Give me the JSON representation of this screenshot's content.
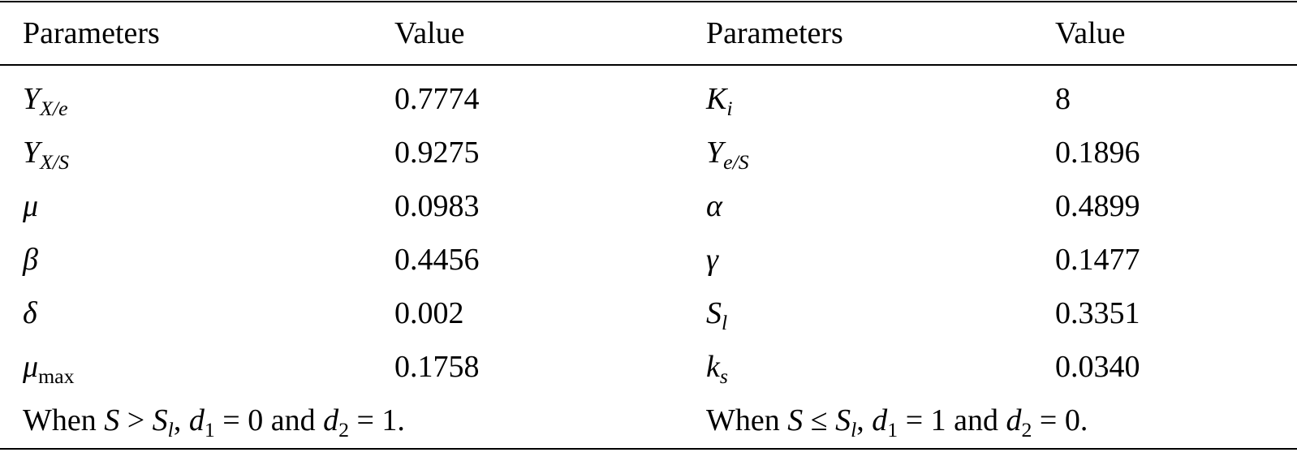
{
  "table": {
    "header": [
      "Parameters",
      "Value",
      "Parameters",
      "Value"
    ],
    "rows": [
      [
        [
          {
            "text": "Y",
            "style": "italic"
          },
          {
            "text": "X/e",
            "style": "italic-sub"
          }
        ],
        "0.7774",
        [
          {
            "text": "K",
            "style": "italic"
          },
          {
            "text": "i",
            "style": "italic-sub"
          }
        ],
        "8"
      ],
      [
        [
          {
            "text": "Y",
            "style": "italic"
          },
          {
            "text": "X/S",
            "style": "italic-sub"
          }
        ],
        "0.9275",
        [
          {
            "text": "Y",
            "style": "italic"
          },
          {
            "text": "e/S",
            "style": "italic-sub"
          }
        ],
        "0.1896"
      ],
      [
        [
          {
            "text": "μ",
            "style": "italic"
          }
        ],
        "0.0983",
        [
          {
            "text": "α",
            "style": "italic"
          }
        ],
        "0.4899"
      ],
      [
        [
          {
            "text": "β",
            "style": "italic"
          }
        ],
        "0.4456",
        [
          {
            "text": "γ",
            "style": "italic"
          }
        ],
        "0.1477"
      ],
      [
        [
          {
            "text": "δ",
            "style": "italic"
          }
        ],
        "0.002",
        [
          {
            "text": "S",
            "style": "italic"
          },
          {
            "text": "l",
            "style": "italic-sub"
          }
        ],
        "0.3351"
      ],
      [
        [
          {
            "text": "μ",
            "style": "italic"
          },
          {
            "text": "max",
            "style": "sub"
          }
        ],
        "0.1758",
        [
          {
            "text": "k",
            "style": "italic"
          },
          {
            "text": "s",
            "style": "italic-sub"
          }
        ],
        "0.0340"
      ]
    ],
    "notes": [
      [
        {
          "text": "When ",
          "style": "normal"
        },
        {
          "text": "S",
          "style": "italic"
        },
        {
          "text": " > ",
          "style": "normal"
        },
        {
          "text": "S",
          "style": "italic"
        },
        {
          "text": "l",
          "style": "italic-sub"
        },
        {
          "text": ", ",
          "style": "normal"
        },
        {
          "text": "d",
          "style": "italic"
        },
        {
          "text": "1",
          "style": "sub"
        },
        {
          "text": " = 0 and ",
          "style": "normal"
        },
        {
          "text": "d",
          "style": "italic"
        },
        {
          "text": "2",
          "style": "sub"
        },
        {
          "text": " = 1.",
          "style": "normal"
        }
      ],
      [
        {
          "text": "When ",
          "style": "normal"
        },
        {
          "text": "S",
          "style": "italic"
        },
        {
          "text": " ≤ ",
          "style": "normal"
        },
        {
          "text": "S",
          "style": "italic"
        },
        {
          "text": "l",
          "style": "italic-sub"
        },
        {
          "text": ", ",
          "style": "normal"
        },
        {
          "text": "d",
          "style": "italic"
        },
        {
          "text": "1",
          "style": "sub"
        },
        {
          "text": " = 1 and ",
          "style": "normal"
        },
        {
          "text": "d",
          "style": "italic"
        },
        {
          "text": "2",
          "style": "sub"
        },
        {
          "text": " = 0.",
          "style": "normal"
        }
      ]
    ]
  }
}
